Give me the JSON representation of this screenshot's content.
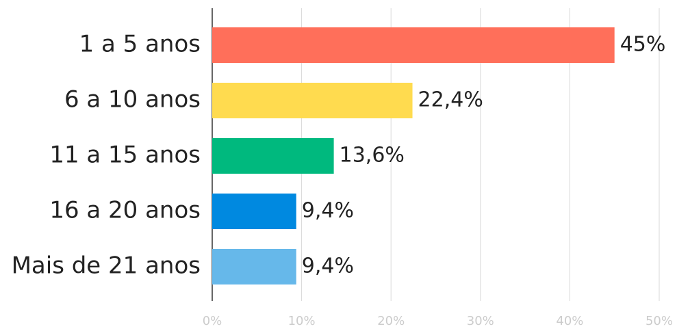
{
  "chart_data": {
    "type": "bar",
    "orientation": "horizontal",
    "categories": [
      "1 a 5 anos",
      "6 a 10 anos",
      "11 a 15 anos",
      "16 a 20 anos",
      "Mais de 21 anos"
    ],
    "values": [
      45,
      22.4,
      13.6,
      9.4,
      9.4
    ],
    "value_labels": [
      "45%",
      "22,4%",
      "13,6%",
      "9,4%",
      "9,4%"
    ],
    "colors": [
      "#ff6f5a",
      "#ffdb4f",
      "#00b97e",
      "#0089e0",
      "#66b8ea"
    ],
    "xlim": [
      0,
      50
    ],
    "xticks": [
      {
        "value": 0,
        "label": "0%"
      },
      {
        "value": 10,
        "label": "10%"
      },
      {
        "value": 20,
        "label": "20%"
      },
      {
        "value": 30,
        "label": "30%"
      },
      {
        "value": 40,
        "label": "40%"
      },
      {
        "value": 50,
        "label": "50%"
      }
    ],
    "grid": true
  }
}
